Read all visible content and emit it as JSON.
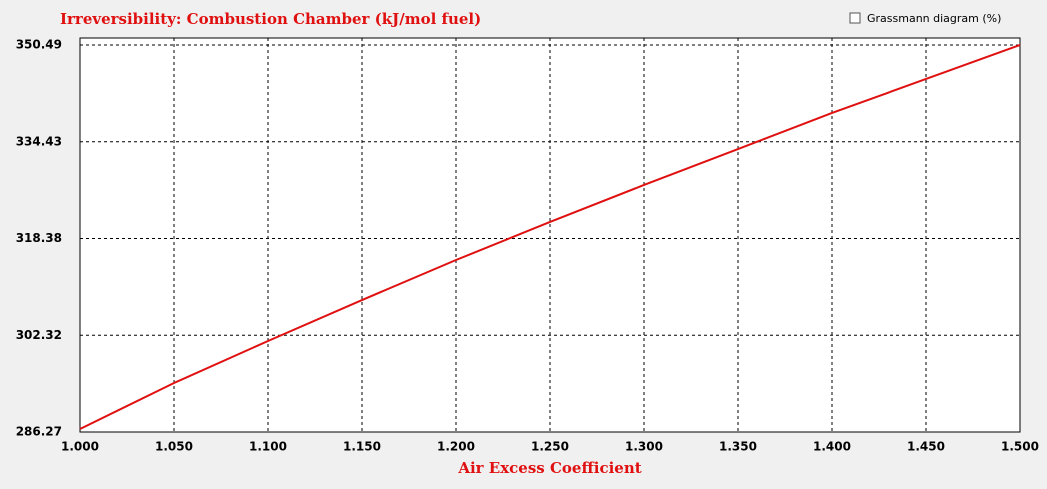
{
  "chart_data": {
    "type": "line",
    "title": "Irreversibility: Combustion Chamber (kJ/mol fuel)",
    "x_label": "Air Excess Coefficient",
    "x": [
      1.0,
      1.05,
      1.1,
      1.15,
      1.2,
      1.25,
      1.3,
      1.35,
      1.4,
      1.45,
      1.5
    ],
    "series": [
      {
        "name": null,
        "color": "#e01010",
        "values": [
          286.77,
          294.4,
          301.37,
          308.17,
          314.81,
          321.12,
          327.26,
          333.23,
          339.21,
          344.85,
          350.49
        ]
      }
    ],
    "xlim": [
      1.0,
      1.5
    ],
    "xticks": [
      {
        "value": 1.0,
        "label": "1.000"
      },
      {
        "value": 1.05,
        "label": "1.050"
      },
      {
        "value": 1.1,
        "label": "1.100"
      },
      {
        "value": 1.15,
        "label": "1.150"
      },
      {
        "value": 1.2,
        "label": "1.200"
      },
      {
        "value": 1.25,
        "label": "1.250"
      },
      {
        "value": 1.3,
        "label": "1.300"
      },
      {
        "value": 1.35,
        "label": "1.350"
      },
      {
        "value": 1.4,
        "label": "1.400"
      },
      {
        "value": 1.45,
        "label": "1.450"
      },
      {
        "value": 1.5,
        "label": "1.500"
      }
    ],
    "ylim": [
      286.27,
      350.49
    ],
    "yticks": [
      286.27,
      302.32,
      318.38,
      334.43,
      350.49
    ],
    "grid": true
  },
  "checkbox": {
    "label": "Grassmann diagram (%)",
    "checked": false
  }
}
